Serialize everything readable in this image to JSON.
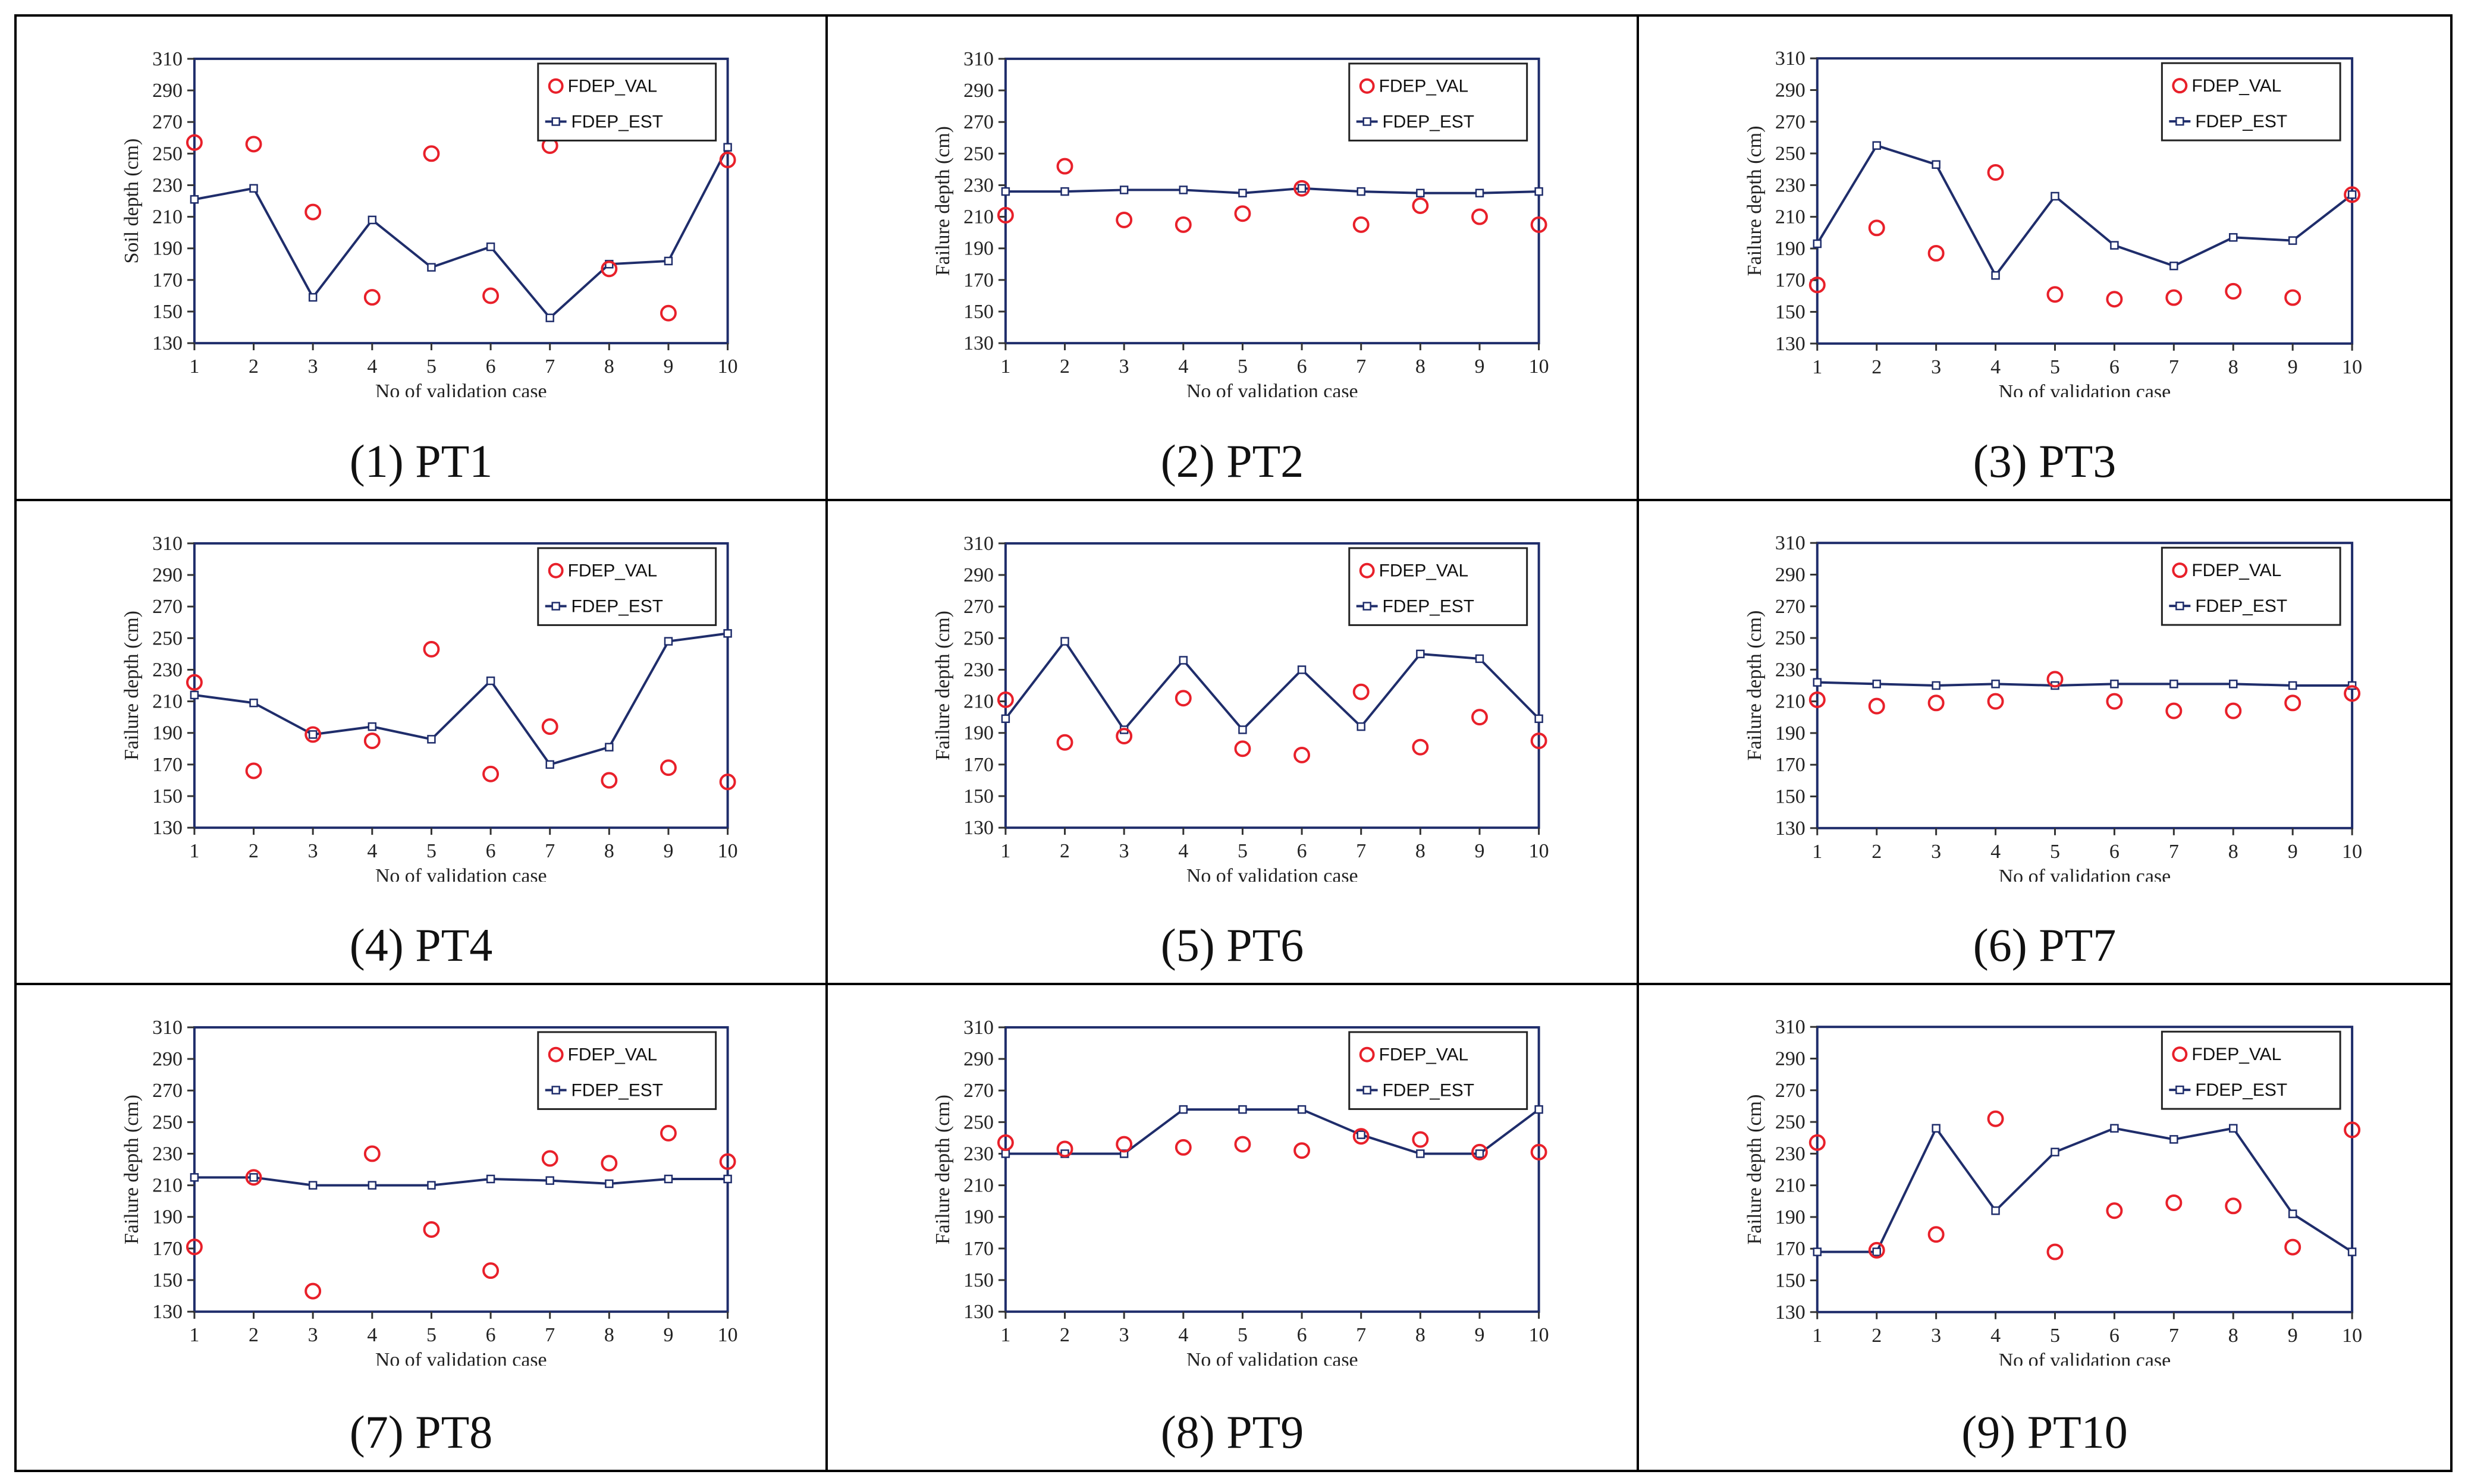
{
  "figure": {
    "colors": {
      "val": "#e8202a",
      "est": "#1f2d6b",
      "frame": "#1f2d6b"
    }
  },
  "chart_data": [
    {
      "type": "line",
      "caption": "(1) PT1",
      "ylabel": "Soil depth (cm)",
      "xlabel": "No  of validation case",
      "ylim": [
        130,
        310
      ],
      "yticks": [
        130,
        150,
        170,
        190,
        210,
        230,
        250,
        270,
        290,
        310
      ],
      "x": [
        1,
        2,
        3,
        4,
        5,
        6,
        7,
        8,
        9,
        10
      ],
      "series": [
        {
          "name": "FDEP_VAL",
          "style": "markers",
          "values": [
            257,
            256,
            213,
            159,
            250,
            160,
            255,
            177,
            149,
            246
          ]
        },
        {
          "name": "FDEP_EST",
          "style": "line",
          "values": [
            221,
            228,
            159,
            208,
            178,
            191,
            146,
            180,
            182,
            254
          ]
        }
      ]
    },
    {
      "type": "line",
      "caption": "(2) PT2",
      "ylabel": "Failure depth (cm)",
      "xlabel": "No  of validation case",
      "ylim": [
        130,
        310
      ],
      "yticks": [
        130,
        150,
        170,
        190,
        210,
        230,
        250,
        270,
        290,
        310
      ],
      "x": [
        1,
        2,
        3,
        4,
        5,
        6,
        7,
        8,
        9,
        10
      ],
      "series": [
        {
          "name": "FDEP_VAL",
          "style": "markers",
          "values": [
            211,
            242,
            208,
            205,
            212,
            228,
            205,
            217,
            210,
            205
          ]
        },
        {
          "name": "FDEP_EST",
          "style": "line",
          "values": [
            226,
            226,
            227,
            227,
            225,
            228,
            226,
            225,
            225,
            226
          ]
        }
      ]
    },
    {
      "type": "line",
      "caption": "(3) PT3",
      "ylabel": "Failure depth (cm)",
      "xlabel": "No  of validation case",
      "ylim": [
        130,
        310
      ],
      "yticks": [
        130,
        150,
        170,
        190,
        210,
        230,
        250,
        270,
        290,
        310
      ],
      "x": [
        1,
        2,
        3,
        4,
        5,
        6,
        7,
        8,
        9,
        10
      ],
      "series": [
        {
          "name": "FDEP_VAL",
          "style": "markers",
          "values": [
            167,
            203,
            187,
            238,
            161,
            158,
            159,
            163,
            159,
            224
          ]
        },
        {
          "name": "FDEP_EST",
          "style": "line",
          "values": [
            193,
            255,
            243,
            173,
            223,
            192,
            179,
            197,
            195,
            224
          ]
        }
      ]
    },
    {
      "type": "line",
      "caption": "(4) PT4",
      "ylabel": "Failure depth (cm)",
      "xlabel": "No  of validation case",
      "ylim": [
        130,
        310
      ],
      "yticks": [
        130,
        150,
        170,
        190,
        210,
        230,
        250,
        270,
        290,
        310
      ],
      "x": [
        1,
        2,
        3,
        4,
        5,
        6,
        7,
        8,
        9,
        10
      ],
      "series": [
        {
          "name": "FDEP_VAL",
          "style": "markers",
          "values": [
            222,
            166,
            189,
            185,
            243,
            164,
            194,
            160,
            168,
            159
          ]
        },
        {
          "name": "FDEP_EST",
          "style": "line",
          "values": [
            214,
            209,
            189,
            194,
            186,
            223,
            170,
            181,
            248,
            253
          ]
        }
      ]
    },
    {
      "type": "line",
      "caption": "(5) PT6",
      "ylabel": "Failure depth (cm)",
      "xlabel": "No  of validation case",
      "ylim": [
        130,
        310
      ],
      "yticks": [
        130,
        150,
        170,
        190,
        210,
        230,
        250,
        270,
        290,
        310
      ],
      "x": [
        1,
        2,
        3,
        4,
        5,
        6,
        7,
        8,
        9,
        10
      ],
      "series": [
        {
          "name": "FDEP_VAL",
          "style": "markers",
          "values": [
            211,
            184,
            188,
            212,
            180,
            176,
            216,
            181,
            200,
            185
          ]
        },
        {
          "name": "FDEP_EST",
          "style": "line",
          "values": [
            199,
            248,
            192,
            236,
            192,
            230,
            194,
            240,
            237,
            199
          ]
        }
      ]
    },
    {
      "type": "line",
      "caption": "(6) PT7",
      "ylabel": "Failure depth (cm)",
      "xlabel": "No  of validation case",
      "ylim": [
        130,
        310
      ],
      "yticks": [
        130,
        150,
        170,
        190,
        210,
        230,
        250,
        270,
        290,
        310
      ],
      "x": [
        1,
        2,
        3,
        4,
        5,
        6,
        7,
        8,
        9,
        10
      ],
      "series": [
        {
          "name": "FDEP_VAL",
          "style": "markers",
          "values": [
            211,
            207,
            209,
            210,
            224,
            210,
            204,
            204,
            209,
            215
          ]
        },
        {
          "name": "FDEP_EST",
          "style": "line",
          "values": [
            222,
            221,
            220,
            221,
            220,
            221,
            221,
            221,
            220,
            220
          ]
        }
      ]
    },
    {
      "type": "line",
      "caption": "(7) PT8",
      "ylabel": "Failure depth (cm)",
      "xlabel": "No  of validation case",
      "ylim": [
        130,
        310
      ],
      "yticks": [
        130,
        150,
        170,
        190,
        210,
        230,
        250,
        270,
        290,
        310
      ],
      "x": [
        1,
        2,
        3,
        4,
        5,
        6,
        7,
        8,
        9,
        10
      ],
      "series": [
        {
          "name": "FDEP_VAL",
          "style": "markers",
          "values": [
            171,
            215,
            143,
            230,
            182,
            156,
            227,
            224,
            243,
            225
          ]
        },
        {
          "name": "FDEP_EST",
          "style": "line",
          "values": [
            215,
            215,
            210,
            210,
            210,
            214,
            213,
            211,
            214,
            214
          ]
        }
      ]
    },
    {
      "type": "line",
      "caption": "(8) PT9",
      "ylabel": "Failure depth (cm)",
      "xlabel": "No  of validation case",
      "ylim": [
        130,
        310
      ],
      "yticks": [
        130,
        150,
        170,
        190,
        210,
        230,
        250,
        270,
        290,
        310
      ],
      "x": [
        1,
        2,
        3,
        4,
        5,
        6,
        7,
        8,
        9,
        10
      ],
      "series": [
        {
          "name": "FDEP_VAL",
          "style": "markers",
          "values": [
            237,
            233,
            236,
            234,
            236,
            232,
            241,
            239,
            231,
            231
          ]
        },
        {
          "name": "FDEP_EST",
          "style": "line",
          "values": [
            230,
            230,
            230,
            258,
            258,
            258,
            242,
            230,
            230,
            258
          ]
        }
      ]
    },
    {
      "type": "line",
      "caption": "(9) PT10",
      "ylabel": "Failure depth (cm)",
      "xlabel": "No  of validation case",
      "ylim": [
        130,
        310
      ],
      "yticks": [
        130,
        150,
        170,
        190,
        210,
        230,
        250,
        270,
        290,
        310
      ],
      "x": [
        1,
        2,
        3,
        4,
        5,
        6,
        7,
        8,
        9,
        10
      ],
      "series": [
        {
          "name": "FDEP_VAL",
          "style": "markers",
          "values": [
            237,
            169,
            179,
            252,
            168,
            194,
            199,
            197,
            171,
            245
          ]
        },
        {
          "name": "FDEP_EST",
          "style": "line",
          "values": [
            168,
            168,
            246,
            194,
            231,
            246,
            239,
            246,
            192,
            168
          ]
        }
      ]
    }
  ]
}
